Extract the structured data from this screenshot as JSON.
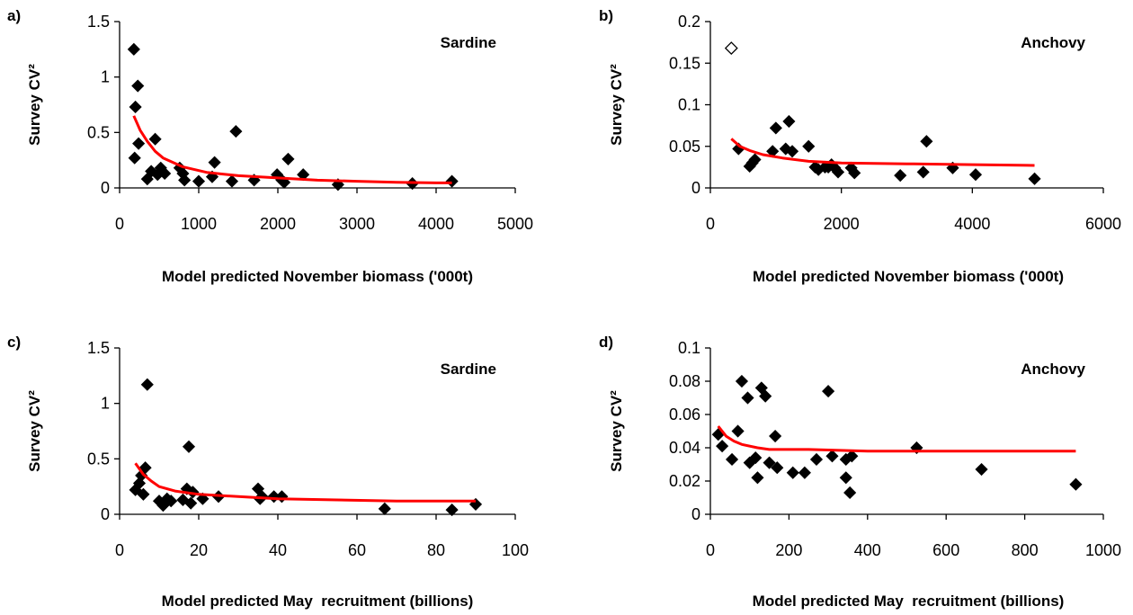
{
  "chart_data": [
    {
      "type": "scatter",
      "panel_label": "a)",
      "species_label": "Sardine",
      "xlabel": "Model predicted November biomass ('000t)",
      "ylabel": "Survey CV²",
      "xlim": [
        0,
        5000
      ],
      "ylim": [
        0,
        1.5
      ],
      "x_ticks": [
        0,
        1000,
        2000,
        3000,
        4000,
        5000
      ],
      "y_ticks": [
        0,
        0.5,
        1,
        1.5
      ],
      "x_tick_labels": [
        "0",
        "1000",
        "2000",
        "3000",
        "4000",
        "5000"
      ],
      "y_tick_labels": [
        "0",
        "0.5",
        "1",
        "1.5"
      ],
      "points": [
        [
          180,
          1.25
        ],
        [
          200,
          0.73
        ],
        [
          230,
          0.92
        ],
        [
          190,
          0.27
        ],
        [
          240,
          0.4
        ],
        [
          350,
          0.08
        ],
        [
          400,
          0.15
        ],
        [
          450,
          0.44
        ],
        [
          480,
          0.12
        ],
        [
          520,
          0.18
        ],
        [
          570,
          0.13
        ],
        [
          760,
          0.18
        ],
        [
          800,
          0.13
        ],
        [
          820,
          0.07
        ],
        [
          1000,
          0.06
        ],
        [
          1170,
          0.1
        ],
        [
          1200,
          0.23
        ],
        [
          1420,
          0.06
        ],
        [
          1470,
          0.51
        ],
        [
          1700,
          0.07
        ],
        [
          1990,
          0.12
        ],
        [
          2050,
          0.07
        ],
        [
          2080,
          0.05
        ],
        [
          2130,
          0.26
        ],
        [
          2320,
          0.12
        ],
        [
          2760,
          0.03
        ],
        [
          3700,
          0.04
        ],
        [
          4200,
          0.06
        ]
      ],
      "hollow_points": [],
      "fit_line": [
        [
          180,
          0.65
        ],
        [
          260,
          0.52
        ],
        [
          350,
          0.42
        ],
        [
          450,
          0.33
        ],
        [
          550,
          0.27
        ],
        [
          800,
          0.19
        ],
        [
          1100,
          0.14
        ],
        [
          1500,
          0.11
        ],
        [
          2000,
          0.09
        ],
        [
          2500,
          0.07
        ],
        [
          3000,
          0.06
        ],
        [
          3500,
          0.05
        ],
        [
          4000,
          0.045
        ],
        [
          4200,
          0.045
        ]
      ],
      "fit_color": "#ff0000",
      "marker": "diamond",
      "grid": false
    },
    {
      "type": "scatter",
      "panel_label": "b)",
      "species_label": "Anchovy",
      "xlabel": "Model predicted November biomass ('000t)",
      "ylabel": "Survey CV²",
      "xlim": [
        0,
        6000
      ],
      "ylim": [
        0,
        0.2
      ],
      "x_ticks": [
        0,
        2000,
        4000,
        6000
      ],
      "y_ticks": [
        0,
        0.05,
        0.1,
        0.15,
        0.2
      ],
      "x_tick_labels": [
        "0",
        "2000",
        "4000",
        "6000"
      ],
      "y_tick_labels": [
        "0",
        "0.05",
        "0.1",
        "0.15",
        "0.2"
      ],
      "points": [
        [
          430,
          0.047
        ],
        [
          600,
          0.026
        ],
        [
          640,
          0.03
        ],
        [
          680,
          0.034
        ],
        [
          950,
          0.044
        ],
        [
          1000,
          0.072
        ],
        [
          1150,
          0.047
        ],
        [
          1200,
          0.08
        ],
        [
          1250,
          0.044
        ],
        [
          1500,
          0.05
        ],
        [
          1600,
          0.025
        ],
        [
          1650,
          0.022
        ],
        [
          1750,
          0.025
        ],
        [
          1800,
          0.025
        ],
        [
          1850,
          0.028
        ],
        [
          1900,
          0.024
        ],
        [
          1950,
          0.019
        ],
        [
          2150,
          0.024
        ],
        [
          2200,
          0.018
        ],
        [
          2900,
          0.015
        ],
        [
          3250,
          0.019
        ],
        [
          3300,
          0.056
        ],
        [
          3700,
          0.024
        ],
        [
          4050,
          0.016
        ],
        [
          4950,
          0.011
        ]
      ],
      "hollow_points": [
        [
          320,
          0.168
        ]
      ],
      "fit_line": [
        [
          320,
          0.059
        ],
        [
          450,
          0.05
        ],
        [
          600,
          0.045
        ],
        [
          800,
          0.04
        ],
        [
          1100,
          0.036
        ],
        [
          1500,
          0.032
        ],
        [
          2000,
          0.03
        ],
        [
          3000,
          0.029
        ],
        [
          4000,
          0.028
        ],
        [
          4950,
          0.027
        ]
      ],
      "fit_color": "#ff0000",
      "marker": "diamond",
      "grid": false
    },
    {
      "type": "scatter",
      "panel_label": "c)",
      "species_label": "Sardine",
      "xlabel": "Model predicted May  recruitment (billions)",
      "ylabel": "Survey CV²",
      "xlim": [
        0,
        100
      ],
      "ylim": [
        0,
        1.5
      ],
      "x_ticks": [
        0,
        20,
        40,
        60,
        80,
        100
      ],
      "y_ticks": [
        0,
        0.5,
        1,
        1.5
      ],
      "x_tick_labels": [
        "0",
        "20",
        "40",
        "60",
        "80",
        "100"
      ],
      "y_tick_labels": [
        "0",
        "0.5",
        "1",
        "1.5"
      ],
      "points": [
        [
          4,
          0.22
        ],
        [
          5,
          0.28
        ],
        [
          5.5,
          0.35
        ],
        [
          6,
          0.18
        ],
        [
          6.5,
          0.42
        ],
        [
          7,
          1.17
        ],
        [
          10,
          0.12
        ],
        [
          11,
          0.08
        ],
        [
          12,
          0.14
        ],
        [
          13,
          0.12
        ],
        [
          16,
          0.13
        ],
        [
          17,
          0.23
        ],
        [
          17.5,
          0.61
        ],
        [
          18,
          0.1
        ],
        [
          18.5,
          0.2
        ],
        [
          21,
          0.14
        ],
        [
          25,
          0.16
        ],
        [
          35,
          0.23
        ],
        [
          35.5,
          0.14
        ],
        [
          36,
          0.16
        ],
        [
          39,
          0.16
        ],
        [
          41,
          0.16
        ],
        [
          67,
          0.05
        ],
        [
          84,
          0.04
        ],
        [
          90,
          0.09
        ]
      ],
      "hollow_points": [],
      "fit_line": [
        [
          4,
          0.46
        ],
        [
          6,
          0.36
        ],
        [
          8,
          0.3
        ],
        [
          10,
          0.25
        ],
        [
          14,
          0.21
        ],
        [
          20,
          0.18
        ],
        [
          30,
          0.16
        ],
        [
          40,
          0.14
        ],
        [
          55,
          0.13
        ],
        [
          70,
          0.12
        ],
        [
          90,
          0.12
        ]
      ],
      "fit_color": "#ff0000",
      "marker": "diamond",
      "grid": false
    },
    {
      "type": "scatter",
      "panel_label": "d)",
      "species_label": "Anchovy",
      "xlabel": "Model predicted May  recruitment (billions)",
      "ylabel": "Survey CV²",
      "xlim": [
        0,
        1000
      ],
      "ylim": [
        0,
        0.1
      ],
      "x_ticks": [
        0,
        200,
        400,
        600,
        800,
        1000
      ],
      "y_ticks": [
        0,
        0.02,
        0.04,
        0.06,
        0.08,
        0.1
      ],
      "x_tick_labels": [
        "0",
        "200",
        "400",
        "600",
        "800",
        "1000"
      ],
      "y_tick_labels": [
        "0",
        "0.02",
        "0.04",
        "0.06",
        "0.08",
        "0.1"
      ],
      "points": [
        [
          20,
          0.048
        ],
        [
          30,
          0.041
        ],
        [
          55,
          0.033
        ],
        [
          70,
          0.05
        ],
        [
          80,
          0.08
        ],
        [
          95,
          0.07
        ],
        [
          100,
          0.031
        ],
        [
          115,
          0.034
        ],
        [
          120,
          0.022
        ],
        [
          130,
          0.076
        ],
        [
          140,
          0.071
        ],
        [
          150,
          0.031
        ],
        [
          165,
          0.047
        ],
        [
          170,
          0.028
        ],
        [
          210,
          0.025
        ],
        [
          240,
          0.025
        ],
        [
          270,
          0.033
        ],
        [
          300,
          0.074
        ],
        [
          310,
          0.035
        ],
        [
          345,
          0.033
        ],
        [
          345,
          0.022
        ],
        [
          355,
          0.013
        ],
        [
          360,
          0.035
        ],
        [
          525,
          0.04
        ],
        [
          690,
          0.027
        ],
        [
          930,
          0.018
        ]
      ],
      "hollow_points": [],
      "fit_line": [
        [
          20,
          0.053
        ],
        [
          40,
          0.047
        ],
        [
          60,
          0.044
        ],
        [
          80,
          0.042
        ],
        [
          120,
          0.04
        ],
        [
          150,
          0.039
        ],
        [
          250,
          0.039
        ],
        [
          400,
          0.038
        ],
        [
          600,
          0.038
        ],
        [
          930,
          0.038
        ]
      ],
      "fit_color": "#ff0000",
      "marker": "diamond",
      "grid": false
    }
  ]
}
